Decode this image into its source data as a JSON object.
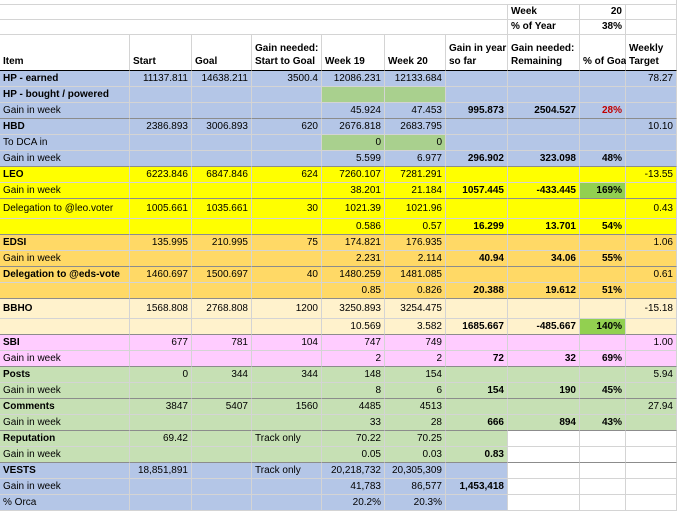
{
  "colors": {
    "blue": "#b4c6e7",
    "green": "#c6e0b4",
    "midgreen": "#a9d08e",
    "yellow": "#ffff00",
    "orange": "#ffd966",
    "peach": "#fff2cc",
    "pink": "#ffccff",
    "strong_green": "#92d050",
    "white": "#ffffff",
    "red_text": "#c00000"
  },
  "top": {
    "week_label": "Week",
    "week_value": "20",
    "pct_year_label": "% of Year",
    "pct_year_value": "38%"
  },
  "headers": {
    "item": "Item",
    "start": "Start",
    "goal": "Goal",
    "gain_needed_1": "Gain needed:",
    "gain_needed_2": "Start to Goal",
    "week19": "Week 19",
    "week20": "Week 20",
    "gain_year_1": "Gain in year",
    "gain_year_2": "so far",
    "gain_rem_1": "Gain needed:",
    "gain_rem_2": "Remaining",
    "pct_goal": "% of Goal",
    "weekly_1": "Weekly",
    "weekly_2": "Target"
  },
  "rows": [
    {
      "item": "HP - earned",
      "item_bold": true,
      "start": "11137.811",
      "goal": "14638.211",
      "gain_needed": "3500.4",
      "w19": "12086.231",
      "w20": "12133.684",
      "gain_year": "",
      "remaining": "",
      "pct": "",
      "weekly": "78.27",
      "bg": "blue",
      "tall": false
    },
    {
      "item": "HP - bought / powered",
      "item_bold": true,
      "start": "",
      "goal": "",
      "gain_needed": "",
      "w19": "",
      "w20": "",
      "gain_year": "",
      "remaining": "",
      "pct": "",
      "weekly": "",
      "bg": "blue",
      "w_bg": "midgreen",
      "tall": false
    },
    {
      "item": "Gain in week",
      "item_bold": false,
      "start": "",
      "goal": "",
      "gain_needed": "",
      "w19": "45.924",
      "w20": "47.453",
      "gain_year": "995.873",
      "remaining": "2504.527",
      "pct": "28%",
      "pct_red": true,
      "weekly": "",
      "bg": "blue",
      "tall": false,
      "sep": true
    },
    {
      "item": "HBD",
      "item_bold": true,
      "start": "2386.893",
      "goal": "3006.893",
      "gain_needed": "620",
      "w19": "2676.818",
      "w20": "2683.795",
      "gain_year": "",
      "remaining": "",
      "pct": "",
      "weekly": "10.10",
      "bg": "blue",
      "tall": false
    },
    {
      "item": "To DCA in",
      "item_bold": false,
      "start": "",
      "goal": "",
      "gain_needed": "",
      "w19": "0",
      "w20": "0",
      "gain_year": "",
      "remaining": "",
      "pct": "",
      "weekly": "",
      "bg": "blue",
      "w_bg": "midgreen",
      "tall": false
    },
    {
      "item": "Gain in week",
      "item_bold": false,
      "start": "",
      "goal": "",
      "gain_needed": "",
      "w19": "5.599",
      "w20": "6.977",
      "gain_year": "296.902",
      "remaining": "323.098",
      "pct": "48%",
      "weekly": "",
      "bg": "blue",
      "tall": false,
      "sep": true
    },
    {
      "item": "LEO",
      "item_bold": true,
      "start": "6223.846",
      "goal": "6847.846",
      "gain_needed": "624",
      "w19": "7260.107",
      "w20": "7281.291",
      "gain_year": "",
      "remaining": "",
      "pct": "",
      "weekly": "-13.55",
      "bg": "yellow",
      "tall": false
    },
    {
      "item": "Gain in week",
      "item_bold": false,
      "start": "",
      "goal": "",
      "gain_needed": "",
      "w19": "38.201",
      "w20": "21.184",
      "gain_year": "1057.445",
      "remaining": "-433.445",
      "pct": "169%",
      "pct_bg": "strong_green",
      "weekly": "",
      "bg": "yellow",
      "tall": false,
      "sep": true
    },
    {
      "item": "Delegation to @leo.voter",
      "item_bold": false,
      "start": "1005.661",
      "goal": "1035.661",
      "gain_needed": "30",
      "w19": "1021.39",
      "w20": "1021.96",
      "gain_year": "",
      "remaining": "",
      "pct": "",
      "weekly": "0.43",
      "bg": "yellow",
      "tall": true
    },
    {
      "item": "",
      "item_bold": false,
      "start": "",
      "goal": "",
      "gain_needed": "",
      "w19": "0.586",
      "w20": "0.57",
      "gain_year": "16.299",
      "remaining": "13.701",
      "pct": "54%",
      "weekly": "",
      "bg": "yellow",
      "tall": false,
      "sep": true
    },
    {
      "item": "EDSI",
      "item_bold": true,
      "start": "135.995",
      "goal": "210.995",
      "gain_needed": "75",
      "w19": "174.821",
      "w20": "176.935",
      "gain_year": "",
      "remaining": "",
      "pct": "",
      "weekly": "1.06",
      "bg": "orange",
      "tall": false
    },
    {
      "item": "Gain in week",
      "item_bold": false,
      "start": "",
      "goal": "",
      "gain_needed": "",
      "w19": "2.231",
      "w20": "2.114",
      "gain_year": "40.94",
      "remaining": "34.06",
      "pct": "55%",
      "weekly": "",
      "bg": "orange",
      "tall": false,
      "sep": true
    },
    {
      "item": "Delegation to @eds-vote",
      "item_bold": true,
      "start": "1460.697",
      "goal": "1500.697",
      "gain_needed": "40",
      "w19": "1480.259",
      "w20": "1481.085",
      "gain_year": "",
      "remaining": "",
      "pct": "",
      "weekly": "0.61",
      "bg": "orange",
      "tall": false
    },
    {
      "item": "",
      "item_bold": false,
      "start": "",
      "goal": "",
      "gain_needed": "",
      "w19": "0.85",
      "w20": "0.826",
      "gain_year": "20.388",
      "remaining": "19.612",
      "pct": "51%",
      "weekly": "",
      "bg": "orange",
      "tall": false,
      "sep": true
    },
    {
      "item": "BBHO",
      "item_bold": true,
      "start": "1568.808",
      "goal": "2768.808",
      "gain_needed": "1200",
      "w19": "3250.893",
      "w20": "3254.475",
      "gain_year": "",
      "remaining": "",
      "pct": "",
      "weekly": "-15.18",
      "bg": "peach",
      "tall": true
    },
    {
      "item": "",
      "item_bold": false,
      "start": "",
      "goal": "",
      "gain_needed": "",
      "w19": "10.569",
      "w20": "3.582",
      "gain_year": "1685.667",
      "remaining": "-485.667",
      "pct": "140%",
      "pct_bg": "strong_green",
      "weekly": "",
      "bg": "peach",
      "tall": false,
      "sep": true
    },
    {
      "item": "SBI",
      "item_bold": true,
      "start": "677",
      "goal": "781",
      "gain_needed": "104",
      "w19": "747",
      "w20": "749",
      "gain_year": "",
      "remaining": "",
      "pct": "",
      "weekly": "1.00",
      "bg": "pink",
      "tall": false
    },
    {
      "item": "Gain in week",
      "item_bold": false,
      "start": "",
      "goal": "",
      "gain_needed": "",
      "w19": "2",
      "w20": "2",
      "gain_year": "72",
      "remaining": "32",
      "pct": "69%",
      "weekly": "",
      "bg": "pink",
      "tall": false,
      "sep": true
    },
    {
      "item": "Posts",
      "item_bold": true,
      "start": "0",
      "goal": "344",
      "gain_needed": "344",
      "w19": "148",
      "w20": "154",
      "gain_year": "",
      "remaining": "",
      "pct": "",
      "weekly": "5.94",
      "bg": "green",
      "tall": false
    },
    {
      "item": "Gain in week",
      "item_bold": false,
      "start": "",
      "goal": "",
      "gain_needed": "",
      "w19": "8",
      "w20": "6",
      "gain_year": "154",
      "remaining": "190",
      "pct": "45%",
      "weekly": "",
      "bg": "green",
      "tall": false,
      "sep": true
    },
    {
      "item": "Comments",
      "item_bold": true,
      "start": "3847",
      "goal": "5407",
      "gain_needed": "1560",
      "w19": "4485",
      "w20": "4513",
      "gain_year": "",
      "remaining": "",
      "pct": "",
      "weekly": "27.94",
      "bg": "green",
      "tall": false
    },
    {
      "item": "Gain in week",
      "item_bold": false,
      "start": "",
      "goal": "",
      "gain_needed": "",
      "w19": "33",
      "w20": "28",
      "gain_year": "666",
      "remaining": "894",
      "pct": "43%",
      "weekly": "",
      "bg": "green",
      "tall": false,
      "sep": true
    },
    {
      "item": "Reputation",
      "item_bold": true,
      "start": "69.42",
      "goal": "",
      "gain_needed": "Track only",
      "gain_needed_left": true,
      "w19": "70.22",
      "w20": "70.25",
      "gain_year": "",
      "remaining": "",
      "pct": "",
      "weekly": "",
      "bg": "green",
      "tall": false,
      "partial": true
    },
    {
      "item": "Gain in week",
      "item_bold": false,
      "start": "",
      "goal": "",
      "gain_needed": "",
      "w19": "0.05",
      "w20": "0.03",
      "gain_year": "0.83",
      "remaining": "",
      "pct": "",
      "weekly": "",
      "bg": "green",
      "tall": false,
      "sep": true,
      "partial": true
    },
    {
      "item": "VESTS",
      "item_bold": true,
      "start": "18,851,891",
      "goal": "",
      "gain_needed": "Track only",
      "gain_needed_left": true,
      "w19": "20,218,732",
      "w20": "20,305,309",
      "gain_year": "",
      "remaining": "",
      "pct": "",
      "weekly": "",
      "bg": "blue",
      "tall": false,
      "partial": true
    },
    {
      "item": "Gain in week",
      "item_bold": false,
      "start": "",
      "goal": "",
      "gain_needed": "",
      "w19": "41,783",
      "w20": "86,577",
      "gain_year": "1,453,418",
      "remaining": "",
      "pct": "",
      "weekly": "",
      "bg": "blue",
      "tall": false,
      "partial": true
    },
    {
      "item": "% Orca",
      "item_bold": false,
      "start": "",
      "goal": "",
      "gain_needed": "",
      "w19": "20.2%",
      "w20": "20.3%",
      "gain_year": "",
      "remaining": "",
      "pct": "",
      "weekly": "",
      "bg": "blue",
      "tall": false,
      "partial": true
    }
  ]
}
